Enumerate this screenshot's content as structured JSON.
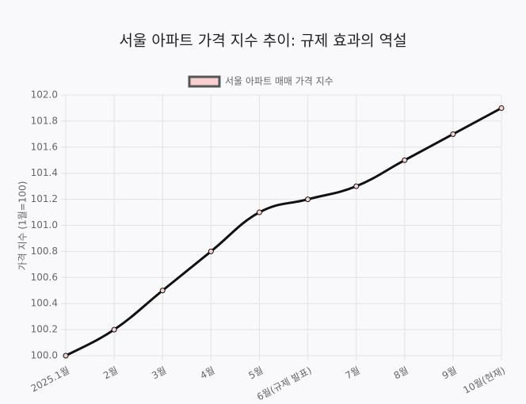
{
  "chart_data": {
    "type": "line",
    "title": "서울 아파트 가격 지수 추이: 규제 효과의 역설",
    "y_label": "가격 지수 (1월=100)",
    "categories": [
      "2025.1월",
      "2월",
      "3월",
      "4월",
      "5월",
      "6월(규제 발표)",
      "7월",
      "8월",
      "9월",
      "10월(현재)"
    ],
    "series": [
      {
        "name": "서울 아파트 매매 가격 지수",
        "color": "#111111",
        "point_color": "#f8d0d0",
        "values": [
          100.0,
          100.2,
          100.5,
          100.8,
          101.1,
          101.2,
          101.3,
          101.5,
          101.7,
          101.9
        ]
      }
    ],
    "ylim": [
      100,
      102
    ],
    "yticks": [
      {
        "value": 100,
        "label": "100.0"
      },
      100.2,
      100.4,
      100.6,
      100.8,
      {
        "value": 101,
        "label": "101.0"
      },
      101.2,
      101.4,
      101.6,
      101.8,
      {
        "value": 102,
        "label": "102.0"
      }
    ],
    "grid": true,
    "legend": "top"
  }
}
